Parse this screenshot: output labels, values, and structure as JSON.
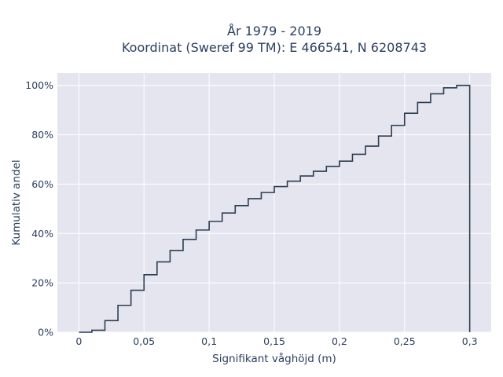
{
  "chart_data": {
    "type": "line",
    "line_shape": "step",
    "title_lines": [
      "År 1979 - 2019",
      "Koordinat (Sweref 99 TM): E 466541, N 6208743"
    ],
    "xlabel": "Signifikant våghöjd (m)",
    "ylabel": "Kumulativ andel",
    "xlim": [
      -0.0165,
      0.3165
    ],
    "ylim": [
      0,
      1.05
    ],
    "x_ticks": [
      0,
      0.05,
      0.1,
      0.15,
      0.2,
      0.25,
      0.3
    ],
    "x_tick_labels": [
      "0",
      "0,05",
      "0,1",
      "0,15",
      "0,2",
      "0,25",
      "0,3"
    ],
    "y_ticks": [
      0,
      0.2,
      0.4,
      0.6,
      0.8,
      1.0
    ],
    "y_tick_labels": [
      "0%",
      "20%",
      "40%",
      "60%",
      "80%",
      "100%"
    ],
    "grid": true,
    "legend": false,
    "colors": {
      "plot_background": "#e5e5f0",
      "grid": "#ffffff",
      "line": "#2c3e50",
      "text": "#2a3f5f"
    },
    "series": [
      {
        "x": [
          0,
          0.01,
          0.02,
          0.03,
          0.04,
          0.05,
          0.06,
          0.07,
          0.08,
          0.09,
          0.1,
          0.11,
          0.12,
          0.13,
          0.14,
          0.15,
          0.16,
          0.17,
          0.18,
          0.19,
          0.2,
          0.21,
          0.22,
          0.23,
          0.24,
          0.25,
          0.26,
          0.27,
          0.28,
          0.29,
          0.3
        ],
        "y": [
          0,
          0.008,
          0.047,
          0.109,
          0.17,
          0.233,
          0.285,
          0.331,
          0.376,
          0.414,
          0.449,
          0.483,
          0.513,
          0.541,
          0.566,
          0.59,
          0.612,
          0.633,
          0.652,
          0.672,
          0.693,
          0.721,
          0.754,
          0.795,
          0.838,
          0.887,
          0.931,
          0.966,
          0.99,
          1.0,
          0
        ]
      }
    ]
  }
}
